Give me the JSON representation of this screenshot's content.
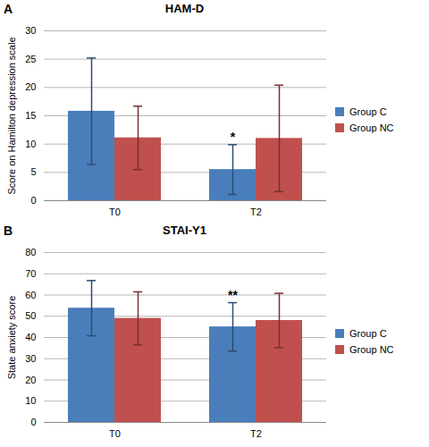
{
  "chart_data": [
    {
      "type": "bar",
      "panel": "A",
      "title": "HAM-D",
      "y_label": "Score on Hamilton depression scale",
      "categories": [
        "T0",
        "T2"
      ],
      "series": [
        {
          "name": "Group C",
          "color": "#4a7ebb",
          "values": [
            15.8,
            5.5
          ],
          "errors": [
            9.4,
            4.4
          ]
        },
        {
          "name": "Group NC",
          "color": "#c0504d",
          "values": [
            11.1,
            11.0
          ],
          "errors": [
            5.6,
            9.4
          ]
        }
      ],
      "ylim": [
        0,
        30
      ],
      "yticks": [
        0,
        5,
        10,
        15,
        20,
        25,
        30
      ],
      "grid": true,
      "legend": "right",
      "annotations": [
        {
          "text": "*",
          "category": "T2",
          "series": "Group C"
        }
      ]
    },
    {
      "type": "bar",
      "panel": "B",
      "title": "STAI-Y1",
      "y_label": "State anxiety score",
      "categories": [
        "T0",
        "T2"
      ],
      "series": [
        {
          "name": "Group C",
          "color": "#4a7ebb",
          "values": [
            53.8,
            45.0
          ],
          "errors": [
            13.0,
            11.4
          ]
        },
        {
          "name": "Group NC",
          "color": "#c0504d",
          "values": [
            49.0,
            48.0
          ],
          "errors": [
            12.5,
            12.8
          ]
        }
      ],
      "ylim": [
        0,
        80
      ],
      "yticks": [
        0,
        10,
        20,
        30,
        40,
        50,
        60,
        70,
        80
      ],
      "grid": true,
      "legend": "right",
      "annotations": [
        {
          "text": "**",
          "category": "T2",
          "series": "Group C"
        }
      ]
    }
  ]
}
